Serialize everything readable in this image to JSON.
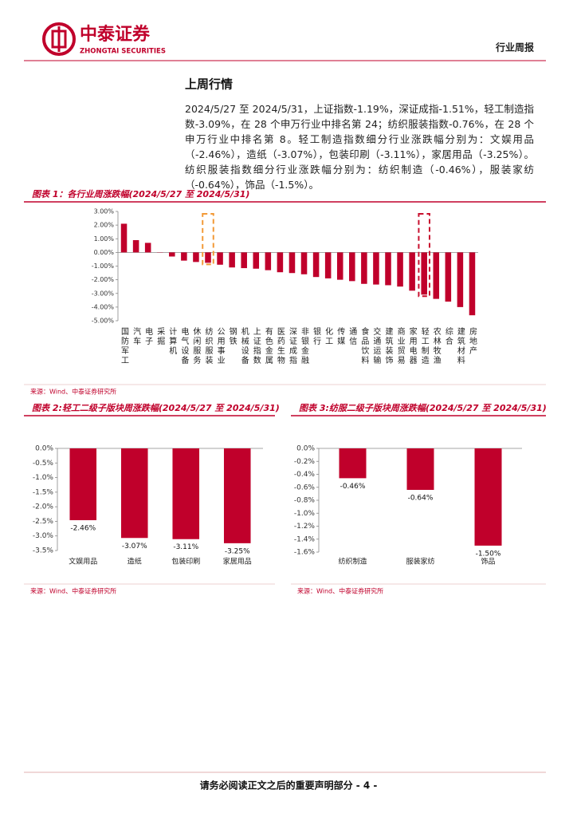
{
  "header": {
    "logo_cn": "中泰证券",
    "logo_en": "ZHONGTAI SECURITIES",
    "report_type": "行业周报"
  },
  "section_title": "上周行情",
  "paragraph": "2024/5/27 至 2024/5/31，上证指数-1.19%，深证成指-1.51%，轻工制造指数-3.09%，在 28 个申万行业中排名第 24；纺织服装指数-0.76%，在 28 个申万行业中排名第 8。轻工制造指数细分行业涨跌幅分别为：文娱用品（-2.46%），造纸（-3.07%），包装印刷（-3.11%），家居用品（-3.25%）。纺织服装指数细分行业涨跌幅分别为：纺织制造（-0.46%），服装家纺（-0.64%），饰品（-1.5%）。",
  "chart_data": [
    {
      "type": "bar",
      "title": "图表 1：各行业周涨跌幅(2024/5/27 至 2024/5/31)",
      "source": "来源：Wind、中泰证券研究所",
      "categories": [
        "国防军工",
        "汽车",
        "电子",
        "采掘",
        "计算机",
        "电气设备",
        "休闲服务",
        "纺织服装",
        "公用事业",
        "钢铁",
        "机械设备",
        "上证指数",
        "有色金属",
        "医药生物",
        "深证成指",
        "非银金融",
        "银行",
        "化工",
        "传媒",
        "通信",
        "食品饮料",
        "交通运输",
        "建筑装饰",
        "商业贸易",
        "家用电器",
        "轻工制造",
        "农林牧渔",
        "综合",
        "建筑材料",
        "房地产"
      ],
      "values": [
        2.1,
        0.9,
        0.7,
        0.02,
        -0.3,
        -0.6,
        -0.7,
        -0.76,
        -0.9,
        -1.1,
        -1.15,
        -1.19,
        -1.3,
        -1.45,
        -1.51,
        -1.6,
        -1.8,
        -1.9,
        -2.0,
        -2.1,
        -2.3,
        -2.35,
        -2.4,
        -2.5,
        -2.8,
        -3.09,
        -3.4,
        -3.6,
        -4.0,
        -4.6
      ],
      "color": "#c0002b",
      "ylim": [
        -5,
        3
      ],
      "yticks": [
        {
          "value": 3,
          "label": "3.00%"
        },
        {
          "value": 2,
          "label": "2.00%"
        },
        {
          "value": 1,
          "label": "1.00%"
        },
        {
          "value": 0,
          "label": "0.00%"
        },
        {
          "value": -1,
          "label": "-1.00%"
        },
        {
          "value": -2,
          "label": "-2.00%"
        },
        {
          "value": -3,
          "label": "-3.00%"
        },
        {
          "value": -4,
          "label": "-4.00%"
        },
        {
          "value": -5,
          "label": "-5.00%"
        }
      ]
    },
    {
      "type": "bar",
      "title": "图表 2:轻工二级子版块周涨跌幅(2024/5/27 至 2024/5/31)",
      "source": "来源：Wind、中泰证券研究所",
      "categories": [
        "文娱用品",
        "造纸",
        "包装印刷",
        "家居用品"
      ],
      "values": [
        -2.46,
        -3.07,
        -3.11,
        -3.25
      ],
      "value_labels": [
        "-2.46%",
        "-3.07%",
        "-3.11%",
        "-3.25%"
      ],
      "color": "#c0002b",
      "ylim": [
        -3.5,
        0
      ],
      "yticks": [
        {
          "value": 0,
          "label": "0.0%"
        },
        {
          "value": -0.5,
          "label": "-0.5%"
        },
        {
          "value": -1,
          "label": "-1.0%"
        },
        {
          "value": -1.5,
          "label": "-1.5%"
        },
        {
          "value": -2,
          "label": "-2.0%"
        },
        {
          "value": -2.5,
          "label": "-2.5%"
        },
        {
          "value": -3,
          "label": "-3.0%"
        },
        {
          "value": -3.5,
          "label": "-3.5%"
        }
      ]
    },
    {
      "type": "bar",
      "title": "图表 3:纺服二级子版块周涨跌幅(2024/5/27 至 2024/5/31)",
      "source": "来源：Wind、中泰证券研究所",
      "categories": [
        "纺织制造",
        "服装家纺",
        "饰品"
      ],
      "values": [
        -0.46,
        -0.64,
        -1.5
      ],
      "value_labels": [
        "-0.46%",
        "-0.64%",
        "-1.50%"
      ],
      "color": "#c0002b",
      "ylim": [
        -1.6,
        0
      ],
      "yticks": [
        {
          "value": 0,
          "label": "0.0%"
        },
        {
          "value": -0.2,
          "label": "-0.2%"
        },
        {
          "value": -0.4,
          "label": "-0.4%"
        },
        {
          "value": -0.6,
          "label": "-0.6%"
        },
        {
          "value": -0.8,
          "label": "-0.8%"
        },
        {
          "value": -1,
          "label": "-1.0%"
        },
        {
          "value": -1.2,
          "label": "-1.2%"
        },
        {
          "value": -1.4,
          "label": "-1.4%"
        },
        {
          "value": -1.6,
          "label": "-1.6%"
        }
      ]
    }
  ],
  "footer": "请务必阅读正文之后的重要声明部分 - 4 -"
}
